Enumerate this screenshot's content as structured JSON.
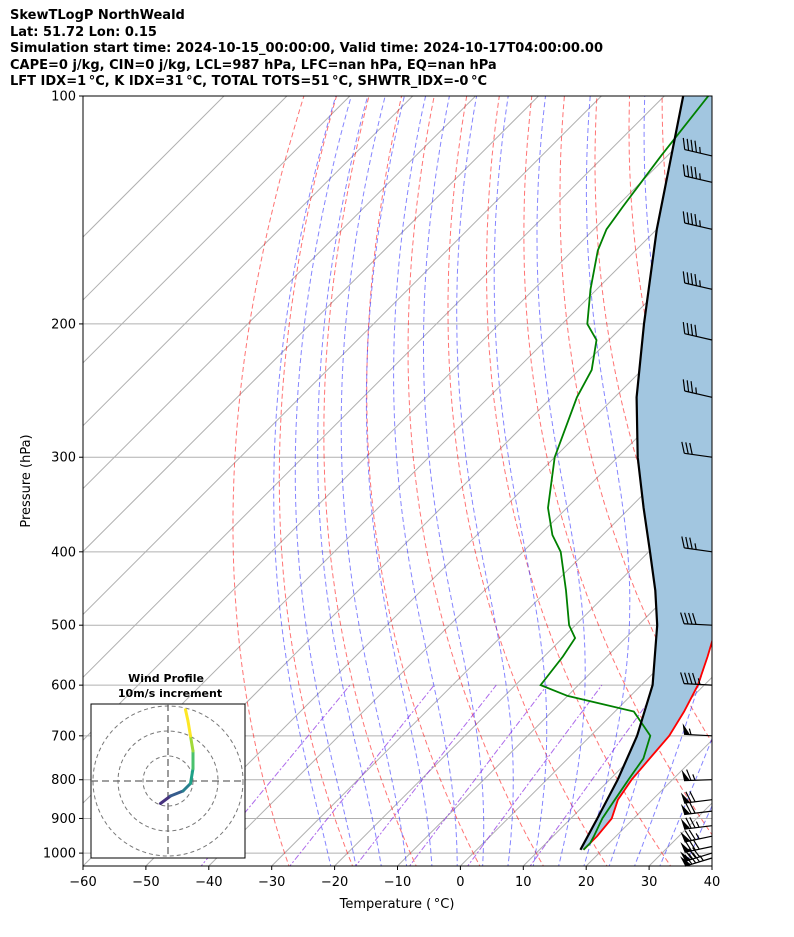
{
  "header": {
    "line1": "SkewTLogP NorthWeald",
    "line2": "Lat: 51.72   Lon: 0.15",
    "line3": "Simulation start time: 2024-10-15_00:00:00, Valid time: 2024-10-17T04:00:00.00",
    "line4": "CAPE=0 j/kg, CIN=0 j/kg, LCL=987 hPa, LFC=nan hPa, EQ=nan hPa",
    "line5": "LFT IDX=1 °C, K IDX=31 °C, TOTAL TOTS=51 °C, SHWTR_IDX=-0 °C"
  },
  "chart_data": {
    "type": "line",
    "xlabel": "Temperature ( °C)",
    "ylabel": "Pressure (hPa)",
    "xlim": [
      -60,
      40
    ],
    "ylim": [
      1040,
      100
    ],
    "y_scale": "log",
    "x_ticks": [
      "−60",
      "−50",
      "−40",
      "−30",
      "−20",
      "−10",
      "0",
      "10",
      "20",
      "30",
      "40"
    ],
    "y_ticks": [
      "1000",
      "900",
      "800",
      "700",
      "600",
      "500",
      "400",
      "300",
      "200",
      "100"
    ],
    "grid": true,
    "series": [
      {
        "role": "temperature",
        "color": "#ff0000",
        "points": [
          [
            990,
            17
          ],
          [
            950,
            17
          ],
          [
            900,
            16.5
          ],
          [
            850,
            14.5
          ],
          [
            800,
            13.5
          ],
          [
            750,
            13
          ],
          [
            700,
            12.5
          ],
          [
            650,
            11
          ],
          [
            600,
            9
          ],
          [
            550,
            6
          ],
          [
            500,
            2.5
          ],
          [
            450,
            -2
          ],
          [
            400,
            -7
          ],
          [
            350,
            -14
          ],
          [
            300,
            -22
          ],
          [
            270,
            -28
          ],
          [
            250,
            -32
          ],
          [
            230,
            -37
          ],
          [
            220,
            -39
          ],
          [
            210,
            -41
          ],
          [
            200,
            -42
          ],
          [
            180,
            -45
          ],
          [
            160,
            -50
          ],
          [
            150,
            -53
          ],
          [
            140,
            -55
          ],
          [
            130,
            -59
          ],
          [
            120,
            -63
          ],
          [
            110,
            -66
          ],
          [
            100,
            -70
          ]
        ]
      },
      {
        "role": "dewpoint",
        "color": "#008000",
        "points": [
          [
            990,
            17
          ],
          [
            970,
            17
          ],
          [
            950,
            16.5
          ],
          [
            900,
            15
          ],
          [
            850,
            14
          ],
          [
            800,
            13
          ],
          [
            750,
            12
          ],
          [
            700,
            9.5
          ],
          [
            650,
            3
          ],
          [
            620,
            -10
          ],
          [
            600,
            -16
          ],
          [
            550,
            -17
          ],
          [
            520,
            -18
          ],
          [
            500,
            -21
          ],
          [
            450,
            -27
          ],
          [
            400,
            -34
          ],
          [
            380,
            -38
          ],
          [
            350,
            -43
          ],
          [
            300,
            -50
          ],
          [
            250,
            -56
          ],
          [
            230,
            -58
          ],
          [
            210,
            -62
          ],
          [
            200,
            -66
          ],
          [
            180,
            -71
          ],
          [
            160,
            -76
          ],
          [
            150,
            -78
          ],
          [
            140,
            -79
          ],
          [
            120,
            -81
          ],
          [
            100,
            -83
          ]
        ]
      },
      {
        "role": "parcel",
        "color": "#000000",
        "points": [
          [
            990,
            16.5
          ],
          [
            900,
            14.2
          ],
          [
            800,
            11.3
          ],
          [
            700,
            7.4
          ],
          [
            600,
            1.8
          ],
          [
            500,
            -7
          ],
          [
            450,
            -12.8
          ],
          [
            400,
            -19.8
          ],
          [
            350,
            -27.8
          ],
          [
            300,
            -36.8
          ],
          [
            250,
            -46.5
          ],
          [
            200,
            -57
          ],
          [
            150,
            -70
          ],
          [
            100,
            -87
          ]
        ]
      }
    ],
    "shaded_region": "between parcel and temperature",
    "shading_color": "#a2c6e0",
    "reference_lines": [
      "dry adiabats (red dashed)",
      "moist adiabats (blue dashed)",
      "mixing ratio lines (purple dash-dot)",
      "isotherms (gray)"
    ],
    "wind_barbs": {
      "side": "right",
      "levels": [
        [
          1015,
          85,
          240
        ],
        [
          1000,
          80,
          240
        ],
        [
          980,
          78,
          245
        ],
        [
          950,
          75,
          245
        ],
        [
          920,
          75,
          250
        ],
        [
          880,
          72,
          250
        ],
        [
          850,
          70,
          250
        ],
        [
          800,
          65,
          255
        ],
        [
          700,
          55,
          260
        ],
        [
          600,
          45,
          260
        ],
        [
          500,
          40,
          260
        ],
        [
          400,
          35,
          265
        ],
        [
          300,
          30,
          265
        ],
        [
          250,
          35,
          270
        ],
        [
          210,
          40,
          270
        ],
        [
          180,
          45,
          270
        ],
        [
          150,
          45,
          270
        ],
        [
          130,
          45,
          270
        ],
        [
          120,
          45,
          270
        ]
      ]
    },
    "inset": {
      "title_line1": "Wind Profile",
      "title_line2": "10m/s increment",
      "rings": [
        1,
        2,
        3
      ],
      "hodograph": [
        [
          -0.3,
          -0.9,
          "#440154"
        ],
        [
          0.1,
          -0.6,
          "#46327e"
        ],
        [
          0.6,
          -0.4,
          "#365c8d"
        ],
        [
          0.9,
          -0.1,
          "#277f8e"
        ],
        [
          1.0,
          0.5,
          "#1fa187"
        ],
        [
          1.0,
          1.2,
          "#4ac16d"
        ],
        [
          0.9,
          1.8,
          "#a0da39"
        ],
        [
          0.8,
          2.4,
          "#fde725"
        ],
        [
          0.7,
          2.85,
          "#fde725"
        ]
      ]
    }
  }
}
